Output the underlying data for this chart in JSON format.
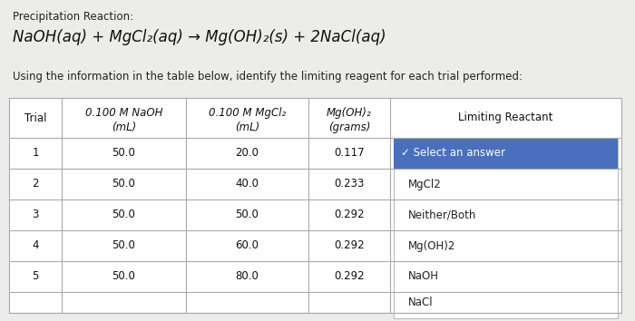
{
  "title_line1": "Precipitation Reaction:",
  "equation": "NaOH(aq) + MgCl₂(aq) → Mg(OH)₂(s) + 2NaCl(aq)",
  "instruction": "Using the information in the table below, identify the limiting reagent for each trial performed:",
  "col_headers_line1": [
    "Trial",
    "0.100 M NaOH",
    "0.100 M MgCl₂",
    "Mg(OH)₂",
    "Limiting Reactant"
  ],
  "col_headers_line2": [
    "",
    "(mL)",
    "(mL)",
    "(grams)",
    ""
  ],
  "rows": [
    [
      "1",
      "50.0",
      "20.0",
      "0.117"
    ],
    [
      "2",
      "50.0",
      "40.0",
      "0.233"
    ],
    [
      "3",
      "50.0",
      "50.0",
      "0.292"
    ],
    [
      "4",
      "50.0",
      "60.0",
      "0.292"
    ],
    [
      "5",
      "50.0",
      "80.0",
      "0.292"
    ]
  ],
  "dropdown_selected": "✓ Select an answer",
  "dropdown_options": [
    "MgCl2",
    "Neither/Both",
    "Mg(OH)2",
    "NaOH",
    "NaCl"
  ],
  "bg_color": "#ececea",
  "table_bg": "#ffffff",
  "dropdown_selected_bg": "#4a6fbd",
  "dropdown_selected_fg": "#ffffff",
  "line_color": "#aaaaaa",
  "title_fontsize": 8.5,
  "equation_fontsize": 12,
  "instruction_fontsize": 8.5,
  "table_fontsize": 8.5,
  "header_fontsize": 8.5
}
